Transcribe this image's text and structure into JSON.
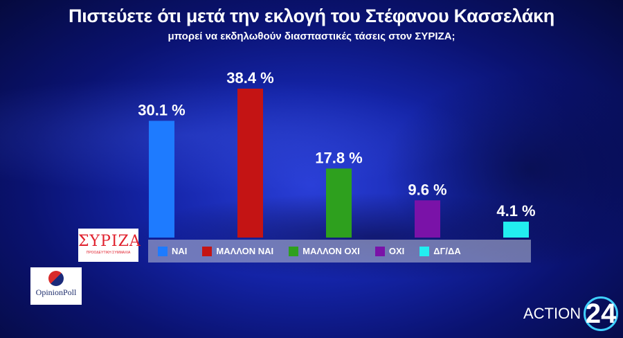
{
  "title": "Πιστεύετε ότι μετά την εκλογή του Στέφανου Κασσελάκη",
  "subtitle": "μπορεί να εκδηλωθούν διασπαστικές τάσεις στον ΣΥΡΙΖΑ;",
  "chart_data": {
    "type": "bar",
    "categories": [
      "ΝΑΙ",
      "ΜΑΛΛΟΝ ΝΑΙ",
      "ΜΑΛΛΟΝ ΟΧΙ",
      "ΟΧΙ",
      "ΔΓ/ΔΑ"
    ],
    "values": [
      30.1,
      38.4,
      17.8,
      9.6,
      4.1
    ],
    "value_labels": [
      "30.1 %",
      "38.4 %",
      "17.8 %",
      "9.6 %",
      "4.1 %"
    ],
    "colors": [
      "#1e7bff",
      "#c41414",
      "#2ea01e",
      "#7a12a8",
      "#22eef0"
    ],
    "ylim": [
      0,
      38.4
    ],
    "legend_placement": "bottom"
  },
  "logos": {
    "party": {
      "name": "ΣΥΡΙΖΑ",
      "tagline": "ΠΡΟΟΔΕΥΤΙΚΗ ΣΥΜΜΑΧΙΑ"
    },
    "pollster": "OpinionPoll",
    "channel": {
      "name": "ACTION",
      "number": "24"
    }
  }
}
